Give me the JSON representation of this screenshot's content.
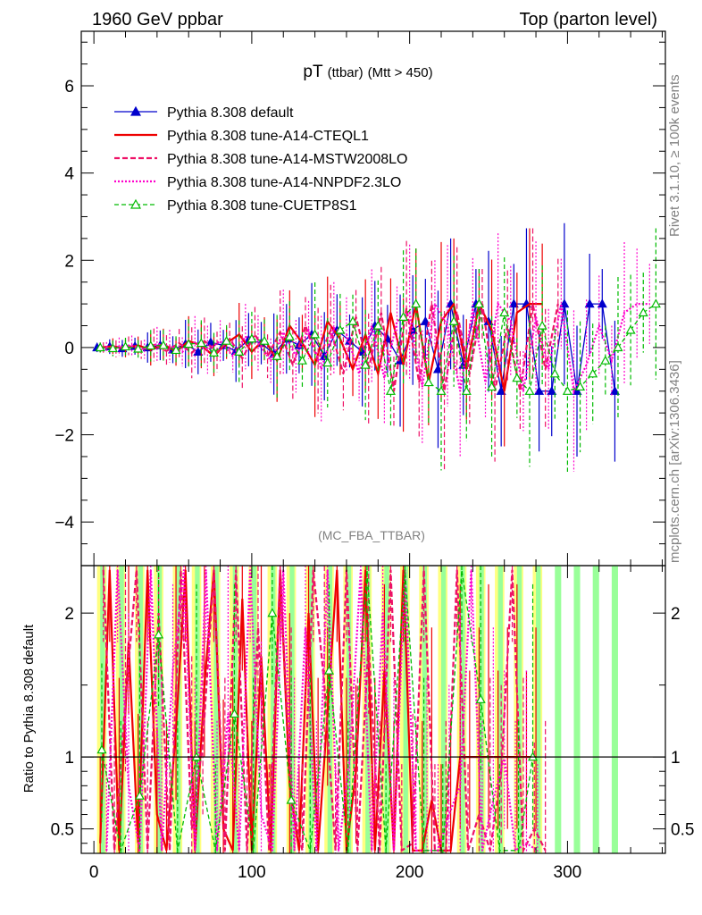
{
  "header": {
    "left": "1960 GeV ppbar",
    "right": "Top (parton level)"
  },
  "side_labels": {
    "rivet": "Rivet 3.1.10, ≥ 100k events",
    "mcplots": "mcplots.cern.ch [arXiv:1306.3436]"
  },
  "chart_data": [
    {
      "type": "line",
      "title_main": "pT",
      "title_sub": "(ttbar)",
      "title_cut": "(Mtt > 450)",
      "watermark": "(MC_FBA_TTBAR)",
      "xlim": [
        -8,
        362
      ],
      "ylim": [
        -5,
        7.25
      ],
      "yticks": [
        -4,
        -2,
        0,
        2,
        4,
        6
      ],
      "ytick_labels": [
        "−4",
        "−2",
        "0",
        "2",
        "4",
        "6"
      ],
      "legend_position": "top-left",
      "series": [
        {
          "name": "Pythia 8.308 default",
          "color": "#0000cc",
          "dash": "",
          "width": 1.3,
          "marker": "triangle-filled",
          "x": [
            2,
            10,
            18,
            26,
            34,
            42,
            50,
            58,
            66,
            74,
            82,
            90,
            98,
            106,
            114,
            122,
            130,
            138,
            146,
            154,
            162,
            170,
            178,
            186,
            194,
            202,
            210,
            218,
            226,
            234,
            242,
            250,
            258,
            266,
            274,
            282,
            290,
            298,
            306,
            314,
            322,
            330
          ],
          "y": [
            0,
            0.02,
            -0.02,
            0.03,
            0,
            0.05,
            -0.05,
            0.08,
            -0.1,
            0.12,
            0.05,
            -0.08,
            0.18,
            0.1,
            -0.15,
            0.2,
            0.05,
            0.3,
            -0.2,
            0.4,
            0.15,
            -0.1,
            0.5,
            0.2,
            -0.3,
            0.4,
            0.6,
            -0.5,
            1,
            -0.4,
            1,
            0.6,
            -1,
            1,
            1,
            -1,
            -1,
            1,
            -1,
            1,
            1,
            -1
          ]
        },
        {
          "name": "Pythia 8.308 tune-A14-CTEQL1",
          "color": "#ee0000",
          "dash": "",
          "width": 2.2,
          "marker": "none",
          "x": [
            4,
            12,
            20,
            28,
            36,
            44,
            52,
            60,
            68,
            76,
            84,
            92,
            100,
            108,
            116,
            124,
            132,
            140,
            148,
            156,
            164,
            172,
            180,
            188,
            196,
            204,
            212,
            220,
            228,
            236,
            244,
            252,
            260,
            268,
            276,
            284
          ],
          "y": [
            0,
            0.03,
            -0.02,
            0.05,
            -0.05,
            0.08,
            -0.1,
            0.15,
            0.05,
            -0.2,
            0.1,
            0.3,
            -0.1,
            0.2,
            -0.3,
            0.5,
            0.1,
            -0.4,
            0.6,
            0.2,
            -0.5,
            0.3,
            -0.6,
            0.8,
            -0.4,
            1,
            -0.8,
            0.6,
            1,
            -0.5,
            1,
            0.4,
            -1,
            0.8,
            1,
            1
          ]
        },
        {
          "name": "Pythia 8.308 tune-A14-MSTW2008LO",
          "color": "#ee1166",
          "dash": "6,3",
          "width": 2.2,
          "marker": "none",
          "x": [
            6,
            14,
            22,
            30,
            38,
            46,
            54,
            62,
            70,
            78,
            86,
            94,
            102,
            110,
            118,
            126,
            134,
            142,
            150,
            158,
            166,
            174,
            182,
            190,
            198,
            206,
            214,
            222,
            230,
            238,
            246,
            254,
            262,
            270,
            278,
            286,
            294
          ],
          "y": [
            0,
            -0.03,
            0.04,
            -0.05,
            0.06,
            -0.08,
            0.1,
            -0.12,
            0.15,
            -0.1,
            0.2,
            -0.25,
            0.3,
            -0.2,
            0.35,
            -0.4,
            0.5,
            -0.3,
            0.4,
            -0.6,
            0.7,
            -0.5,
            0.8,
            -1,
            0.9,
            -0.8,
            1,
            -1,
            0.8,
            -0.6,
            1,
            -1,
            0.5,
            -1,
            1,
            -0.5,
            1
          ]
        },
        {
          "name": "Pythia 8.308 tune-A14-NNPDF2.3LO",
          "color": "#ff00cc",
          "dash": "2,2",
          "width": 2.2,
          "marker": "none",
          "x": [
            8,
            16,
            24,
            32,
            40,
            48,
            56,
            64,
            72,
            80,
            88,
            96,
            104,
            112,
            120,
            128,
            136,
            144,
            152,
            160,
            168,
            176,
            184,
            192,
            200,
            208,
            216,
            224,
            232,
            240,
            248,
            256,
            264,
            272,
            280,
            288,
            296,
            304,
            312,
            320,
            328,
            336,
            344,
            352
          ],
          "y": [
            0,
            0.02,
            0.05,
            -0.04,
            0.08,
            0.03,
            -0.1,
            0.12,
            -0.05,
            0.15,
            -0.2,
            0.25,
            0.1,
            -0.3,
            0.35,
            -0.2,
            0.4,
            -0.5,
            0.45,
            0.3,
            -0.6,
            0.5,
            -0.7,
            0.6,
            0.8,
            -0.9,
            1,
            0.5,
            -1,
            0.9,
            -0.8,
            1,
            0.6,
            -1,
            0.7,
            -0.5,
            1,
            -1,
            -0.4,
            0.5,
            -0.3,
            0.8,
            1,
            1
          ]
        },
        {
          "name": "Pythia 8.308 tune-CUETP8S1",
          "color": "#00bb00",
          "dash": "5,3",
          "width": 1.3,
          "marker": "triangle-open",
          "x": [
            4,
            12,
            20,
            28,
            36,
            44,
            52,
            60,
            68,
            76,
            84,
            92,
            100,
            108,
            116,
            124,
            132,
            140,
            148,
            156,
            164,
            172,
            180,
            188,
            196,
            204,
            212,
            220,
            228,
            236,
            244,
            252,
            260,
            268,
            276,
            284,
            292,
            300,
            308,
            316,
            324,
            332,
            340,
            348,
            356
          ],
          "y": [
            0,
            -0.02,
            0.02,
            -0.03,
            0.04,
            0.05,
            -0.06,
            0.08,
            0.1,
            -0.12,
            0.15,
            -0.1,
            0.2,
            0.15,
            -0.2,
            0.25,
            -0.3,
            0.3,
            -0.35,
            0.4,
            0.6,
            -0.4,
            0.5,
            -1,
            0.7,
            1,
            -0.8,
            -1,
            0.6,
            -1,
            1,
            -0.9,
            0.8,
            -0.7,
            -1,
            0.5,
            -0.6,
            -1,
            -0.9,
            -0.6,
            -0.3,
            0,
            0.4,
            0.8,
            1
          ]
        }
      ]
    },
    {
      "type": "line",
      "ylabel": "Ratio to Pythia 8.308 default",
      "xlim": [
        -8,
        362
      ],
      "ylim": [
        0.33,
        2.33
      ],
      "yticks": [
        0.5,
        1,
        2
      ],
      "ytick_labels": [
        "0.5",
        "1",
        "2"
      ],
      "xticks": [
        0,
        100,
        200,
        300
      ],
      "xtick_labels": [
        "0",
        "100",
        "200",
        "300"
      ],
      "reference_line": 1,
      "bands": {
        "yellow": "#ffff80",
        "green": "#99ff99",
        "yellow_bins": [
          [
            2,
            8
          ],
          [
            14,
            20
          ],
          [
            26,
            32
          ],
          [
            38,
            44
          ],
          [
            50,
            56
          ],
          [
            62,
            68
          ],
          [
            74,
            80
          ],
          [
            86,
            92
          ],
          [
            98,
            104
          ],
          [
            110,
            116
          ],
          [
            122,
            128
          ],
          [
            134,
            140
          ],
          [
            146,
            152
          ],
          [
            158,
            164
          ],
          [
            170,
            176
          ],
          [
            182,
            188
          ],
          [
            194,
            200
          ],
          [
            206,
            212
          ],
          [
            218,
            224
          ],
          [
            230,
            236
          ],
          [
            242,
            248
          ],
          [
            254,
            260
          ],
          [
            266,
            272
          ],
          [
            278,
            284
          ]
        ],
        "green_bins": [
          [
            4,
            7
          ],
          [
            16,
            19
          ],
          [
            28,
            31
          ],
          [
            40,
            43
          ],
          [
            52,
            55
          ],
          [
            64,
            67
          ],
          [
            76,
            79
          ],
          [
            88,
            91
          ],
          [
            100,
            103
          ],
          [
            112,
            115
          ],
          [
            124,
            127
          ],
          [
            136,
            139
          ],
          [
            148,
            151
          ],
          [
            160,
            163
          ],
          [
            172,
            175
          ],
          [
            184,
            187
          ],
          [
            196,
            199
          ],
          [
            208,
            211
          ],
          [
            220,
            223
          ],
          [
            232,
            235
          ],
          [
            244,
            247
          ],
          [
            256,
            259
          ],
          [
            268,
            271
          ],
          [
            280,
            283
          ],
          [
            292,
            296
          ],
          [
            304,
            308
          ],
          [
            316,
            320
          ],
          [
            328,
            332
          ]
        ]
      },
      "series": [
        {
          "name": "Pythia 8.308 tune-A14-CTEQL1",
          "color": "#ee0000",
          "dash": "",
          "width": 2.2,
          "marker": "none",
          "x": [
            4,
            10,
            16,
            22,
            28,
            34,
            40,
            46,
            52,
            58,
            64,
            70,
            76,
            82,
            88,
            94,
            100,
            106,
            112,
            118,
            124,
            130,
            136,
            142,
            148,
            154,
            160,
            166,
            172,
            178,
            184,
            190,
            196,
            202,
            208,
            214,
            220,
            226,
            232,
            238,
            244,
            250,
            256,
            262,
            268,
            274,
            280
          ],
          "y": [
            0.4,
            2.3,
            0.35,
            1.8,
            0.4,
            2.3,
            0.6,
            0.35,
            1.2,
            2.3,
            0.35,
            1.5,
            2.3,
            0.5,
            0.35,
            2.1,
            0.35,
            1.7,
            0.35,
            2.3,
            0.8,
            0.35,
            2.0,
            0.35,
            1.3,
            2.3,
            0.35,
            0.9,
            2.3,
            0.35,
            1.6,
            0.35,
            2.3,
            0.35,
            0.35,
            0.7,
            0.35,
            0.35,
            1.0,
            1.0,
            1.0,
            1.0,
            1.0,
            1.0,
            1.0,
            1.0,
            1.0
          ]
        },
        {
          "name": "Pythia 8.308 tune-A14-MSTW2008LO",
          "color": "#ee1166",
          "dash": "6,3",
          "width": 2.2,
          "marker": "none",
          "x": [
            6,
            13,
            20,
            27,
            34,
            41,
            48,
            55,
            62,
            69,
            76,
            83,
            90,
            97,
            104,
            111,
            118,
            125,
            132,
            139,
            146,
            153,
            160,
            167,
            174,
            181,
            188,
            195,
            202,
            209,
            216,
            223,
            230,
            237,
            244,
            251,
            258,
            265,
            272,
            279,
            286
          ],
          "y": [
            2.3,
            0.35,
            1.4,
            2.3,
            0.35,
            2.0,
            0.35,
            2.3,
            0.5,
            1.1,
            2.3,
            0.35,
            2.3,
            0.35,
            1.9,
            0.35,
            2.3,
            0.7,
            0.35,
            2.3,
            1.5,
            0.35,
            2.3,
            0.35,
            1.8,
            0.35,
            2.3,
            0.35,
            0.4,
            2.3,
            0.35,
            0.35,
            2.3,
            0.35,
            0.6,
            0.35,
            0.9,
            2.3,
            0.35,
            0.5,
            0.35
          ]
        },
        {
          "name": "Pythia 8.308 tune-A14-NNPDF2.3LO",
          "color": "#ff00cc",
          "dash": "2,2",
          "width": 2.2,
          "marker": "none",
          "x": [
            8,
            15,
            22,
            29,
            36,
            43,
            50,
            57,
            64,
            71,
            78,
            85,
            92,
            99,
            106,
            113,
            120,
            127,
            134,
            141,
            148,
            155,
            162,
            169,
            176,
            183,
            190,
            197,
            204,
            211,
            218,
            225,
            232,
            239,
            246,
            253,
            260,
            267,
            274,
            281
          ],
          "y": [
            0.35,
            2.3,
            0.8,
            0.35,
            2.3,
            0.35,
            1.6,
            2.3,
            0.35,
            2.3,
            0.35,
            1.3,
            0.35,
            2.3,
            0.6,
            0.35,
            2.3,
            0.35,
            1.9,
            0.35,
            2.3,
            0.35,
            1.0,
            2.3,
            0.35,
            2.0,
            0.35,
            2.3,
            0.35,
            0.35,
            0.35,
            0.6,
            0.8,
            2.3,
            0.35,
            0.7,
            1.0,
            0.35,
            0.4,
            0.35
          ]
        },
        {
          "name": "Pythia 8.308 tune-CUETP8S1",
          "color": "#00bb00",
          "dash": "5,3",
          "width": 1.3,
          "marker": "triangle-open",
          "x": [
            5,
            17,
            29,
            41,
            53,
            65,
            77,
            89,
            101,
            113,
            125,
            137,
            149,
            161,
            173,
            185,
            197,
            209,
            221,
            233,
            245,
            257,
            269,
            278
          ],
          "y": [
            1.05,
            0.35,
            0.73,
            1.85,
            0.35,
            1.0,
            0.35,
            1.3,
            0.35,
            2.0,
            0.7,
            0.35,
            1.6,
            0.35,
            2.3,
            0.35,
            2.3,
            0.35,
            0.35,
            2.3,
            1.4,
            0.35,
            0.35,
            1.0
          ]
        },
        {
          "name": "Pythia 8.308 default",
          "color": "#0000cc",
          "dash": "",
          "width": 1.3,
          "marker": "none",
          "x": [
            -8,
            362
          ],
          "y": [
            1,
            1
          ]
        }
      ]
    }
  ]
}
